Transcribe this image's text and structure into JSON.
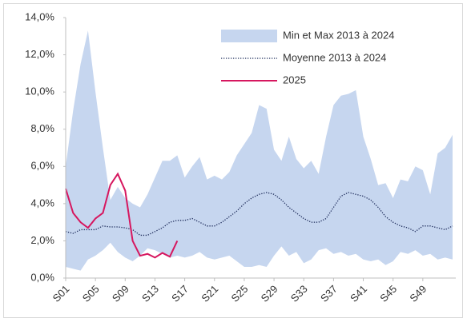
{
  "chart_data": {
    "type": "line",
    "categories": [
      "S01",
      null,
      null,
      null,
      "S05",
      null,
      null,
      null,
      "S09",
      null,
      null,
      null,
      "S13",
      null,
      null,
      null,
      "S17",
      null,
      null,
      null,
      "S21",
      null,
      null,
      null,
      "S25",
      null,
      null,
      null,
      "S29",
      null,
      null,
      null,
      "S33",
      null,
      null,
      null,
      "S37",
      null,
      null,
      null,
      "S41",
      null,
      null,
      null,
      "S45",
      null,
      null,
      null,
      "S49",
      null,
      null,
      null,
      null
    ],
    "series": [
      {
        "name": "Min et Max 2013 à 2024",
        "color": "#c6d6ef",
        "kind": "band",
        "values": [
          6.0,
          9.0,
          11.5,
          13.3,
          10.0,
          7.0,
          4.2,
          4.9,
          4.3,
          4.0,
          3.8,
          4.5,
          5.4,
          6.3,
          6.3,
          6.6,
          5.4,
          6.0,
          6.5,
          5.3,
          5.5,
          5.3,
          5.7,
          6.6,
          7.2,
          7.8,
          9.3,
          9.1,
          6.9,
          6.3,
          7.6,
          6.4,
          5.9,
          6.3,
          5.6,
          7.6,
          9.3,
          9.8,
          9.9,
          10.1,
          7.6,
          6.4,
          5.0,
          5.1,
          4.3,
          5.3,
          5.2,
          6.0,
          5.8,
          4.5,
          6.7,
          7.0,
          7.7
        ],
        "lower": [
          0.6,
          0.5,
          0.4,
          1.0,
          1.2,
          1.5,
          1.9,
          1.4,
          1.1,
          0.9,
          1.2,
          1.6,
          1.5,
          1.3,
          1.1,
          1.2,
          1.1,
          1.2,
          1.4,
          1.1,
          1.0,
          1.1,
          1.2,
          0.9,
          0.6,
          0.6,
          0.7,
          0.6,
          1.2,
          1.7,
          1.2,
          1.4,
          0.8,
          1.0,
          1.5,
          1.6,
          1.3,
          1.4,
          1.2,
          1.3,
          1.0,
          0.9,
          1.0,
          0.7,
          0.9,
          1.4,
          1.3,
          1.5,
          1.2,
          1.3,
          1.0,
          1.1,
          1.0
        ]
      },
      {
        "name": "Moyenne 2013 à 2024",
        "color": "#1f2d5c",
        "kind": "dotted",
        "values": [
          2.5,
          2.4,
          2.6,
          2.6,
          2.6,
          2.8,
          2.75,
          2.75,
          2.7,
          2.6,
          2.3,
          2.3,
          2.5,
          2.7,
          3.0,
          3.1,
          3.1,
          3.2,
          3.0,
          2.8,
          2.8,
          3.0,
          3.3,
          3.6,
          4.0,
          4.3,
          4.5,
          4.6,
          4.5,
          4.2,
          3.8,
          3.5,
          3.2,
          3.0,
          3.0,
          3.2,
          3.8,
          4.4,
          4.6,
          4.5,
          4.4,
          4.2,
          3.8,
          3.3,
          3.0,
          2.8,
          2.7,
          2.5,
          2.8,
          2.8,
          2.7,
          2.6,
          2.8
        ]
      },
      {
        "name": "2025",
        "color": "#d6175f",
        "kind": "solid",
        "values": [
          4.8,
          3.5,
          3.0,
          2.7,
          3.2,
          3.5,
          5.0,
          5.6,
          4.7,
          2.0,
          1.2,
          1.3,
          1.1,
          1.35,
          1.15,
          2.0,
          null,
          null,
          null,
          null,
          null,
          null,
          null,
          null,
          null,
          null,
          null,
          null,
          null,
          null,
          null,
          null,
          null,
          null,
          null,
          null,
          null,
          null,
          null,
          null,
          null,
          null,
          null,
          null,
          null,
          null,
          null,
          null,
          null,
          null,
          null,
          null,
          null
        ]
      }
    ],
    "ylim": [
      0,
      14
    ],
    "yticks": [
      {
        "value": 0,
        "label": "0,0%"
      },
      {
        "value": 2,
        "label": "2,0%"
      },
      {
        "value": 4,
        "label": "4,0%"
      },
      {
        "value": 6,
        "label": "6,0%"
      },
      {
        "value": 8,
        "label": "8,0%"
      },
      {
        "value": 10,
        "label": "10,0%"
      },
      {
        "value": 12,
        "label": "12,0%"
      },
      {
        "value": 14,
        "label": "14,0%"
      }
    ],
    "grid": false,
    "legend": "upper right"
  }
}
